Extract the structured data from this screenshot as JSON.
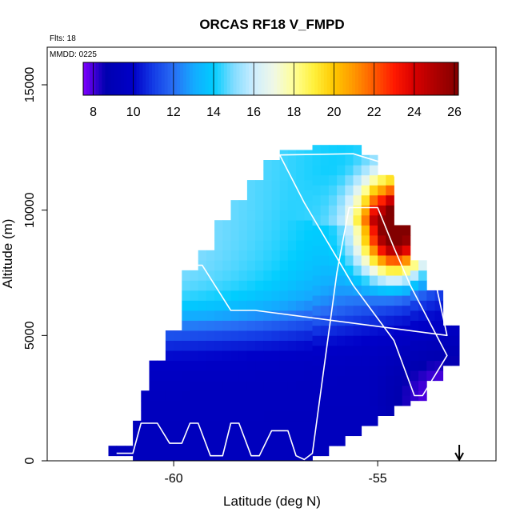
{
  "chart_data": {
    "type": "heatmap",
    "title": "ORCAS RF18 V_FMPD",
    "flights_label": "Flts: 18",
    "date_label": "MMDD: 0225",
    "xlabel": "Latitude (deg N)",
    "ylabel": "Altitude (m)",
    "xlim": [
      -63.1,
      -52.1
    ],
    "ylim": [
      0,
      16500
    ],
    "xticks": [
      -60,
      -55
    ],
    "yticks": [
      0,
      5000,
      10000,
      15000
    ],
    "colorbar": {
      "min": 7.5,
      "max": 26.2,
      "ticks": [
        8,
        10,
        12,
        14,
        16,
        18,
        20,
        22,
        24,
        26
      ]
    },
    "arrow_latitude": -53.0,
    "grid": {
      "lat_start": -61.6,
      "lat_step": 0.2,
      "alt_step": 400
    },
    "columns": [
      {
        "lat_from": -61.6,
        "lat_to": -61.0,
        "alt_min": 200,
        "alt_max": 400
      },
      {
        "lat_from": -61.2,
        "lat_to": -60.8,
        "alt_min": 0,
        "alt_max": 1400
      },
      {
        "lat_from": -60.8,
        "lat_to": -60.6,
        "alt_min": 0,
        "alt_max": 2800
      },
      {
        "lat_from": -60.6,
        "lat_to": -60.2,
        "alt_min": 0,
        "alt_max": 4000
      },
      {
        "lat_from": -60.2,
        "lat_to": -59.8,
        "alt_min": 0,
        "alt_max": 5200
      },
      {
        "lat_from": -59.8,
        "lat_to": -59.4,
        "alt_min": 0,
        "alt_max": 7600
      },
      {
        "lat_from": -59.4,
        "lat_to": -59.0,
        "alt_min": 0,
        "alt_max": 8400
      },
      {
        "lat_from": -59.0,
        "lat_to": -58.6,
        "alt_min": 0,
        "alt_max": 9600
      },
      {
        "lat_from": -58.6,
        "lat_to": -58.2,
        "alt_min": 0,
        "alt_max": 10400
      },
      {
        "lat_from": -58.2,
        "lat_to": -57.8,
        "alt_min": 0,
        "alt_max": 11200
      },
      {
        "lat_from": -57.8,
        "lat_to": -57.4,
        "alt_min": 0,
        "alt_max": 11800
      },
      {
        "lat_from": -57.4,
        "lat_to": -56.6,
        "alt_min": 0,
        "alt_max": 12200
      },
      {
        "lat_from": -56.6,
        "lat_to": -56.2,
        "alt_min": 200,
        "alt_max": 12400
      },
      {
        "lat_from": -56.2,
        "lat_to": -55.8,
        "alt_min": 600,
        "alt_max": 12400
      },
      {
        "lat_from": -55.8,
        "lat_to": -55.4,
        "alt_min": 1000,
        "alt_max": 12400
      },
      {
        "lat_from": -55.4,
        "lat_to": -55.0,
        "alt_min": 1400,
        "alt_max": 12000
      },
      {
        "lat_from": -55.0,
        "lat_to": -54.6,
        "alt_min": 1800,
        "alt_max": 11200
      },
      {
        "lat_from": -54.6,
        "lat_to": -54.2,
        "alt_min": 2200,
        "alt_max": 9200
      },
      {
        "lat_from": -54.2,
        "lat_to": -53.8,
        "alt_min": 2400,
        "alt_max": 8000
      },
      {
        "lat_from": -53.8,
        "lat_to": -53.4,
        "alt_min": 3200,
        "alt_max": 6800
      },
      {
        "lat_from": -53.4,
        "lat_to": -53.0,
        "alt_min": 3800,
        "alt_max": 5400
      }
    ],
    "flight_track": [
      [
        -61.4,
        300
      ],
      [
        -61.0,
        300
      ],
      [
        -60.8,
        1500
      ],
      [
        -60.4,
        1500
      ],
      [
        -60.1,
        700
      ],
      [
        -59.8,
        700
      ],
      [
        -59.6,
        1500
      ],
      [
        -59.4,
        1500
      ],
      [
        -59.1,
        200
      ],
      [
        -58.8,
        200
      ],
      [
        -58.6,
        1500
      ],
      [
        -58.4,
        1500
      ],
      [
        -58.1,
        200
      ],
      [
        -57.9,
        200
      ],
      [
        -57.6,
        1200
      ],
      [
        -57.2,
        1200
      ],
      [
        -57.0,
        200
      ],
      [
        -56.8,
        50
      ],
      [
        -56.6,
        300
      ],
      [
        -56.0,
        7500
      ],
      [
        -55.7,
        10100
      ],
      [
        -55.0,
        10100
      ],
      [
        -54.6,
        8500
      ],
      [
        -54.2,
        7000
      ],
      [
        -53.3,
        4200
      ],
      [
        -53.9,
        2600
      ],
      [
        -54.1,
        2600
      ],
      [
        -54.6,
        4800
      ],
      [
        -55.6,
        7000
      ],
      [
        -56.8,
        10300
      ],
      [
        -57.4,
        12200
      ],
      [
        -55.6,
        12250
      ],
      [
        -54.7,
        11800
      ],
      [
        -54.1,
        9500
      ],
      [
        -53.7,
        8000
      ],
      [
        -53.3,
        5000
      ],
      [
        -58.0,
        6000
      ],
      [
        -58.6,
        6000
      ],
      [
        -59.3,
        7800
      ],
      [
        -60.0,
        7800
      ],
      [
        -61.0,
        4000
      ],
      [
        -61.6,
        1500
      ]
    ]
  }
}
